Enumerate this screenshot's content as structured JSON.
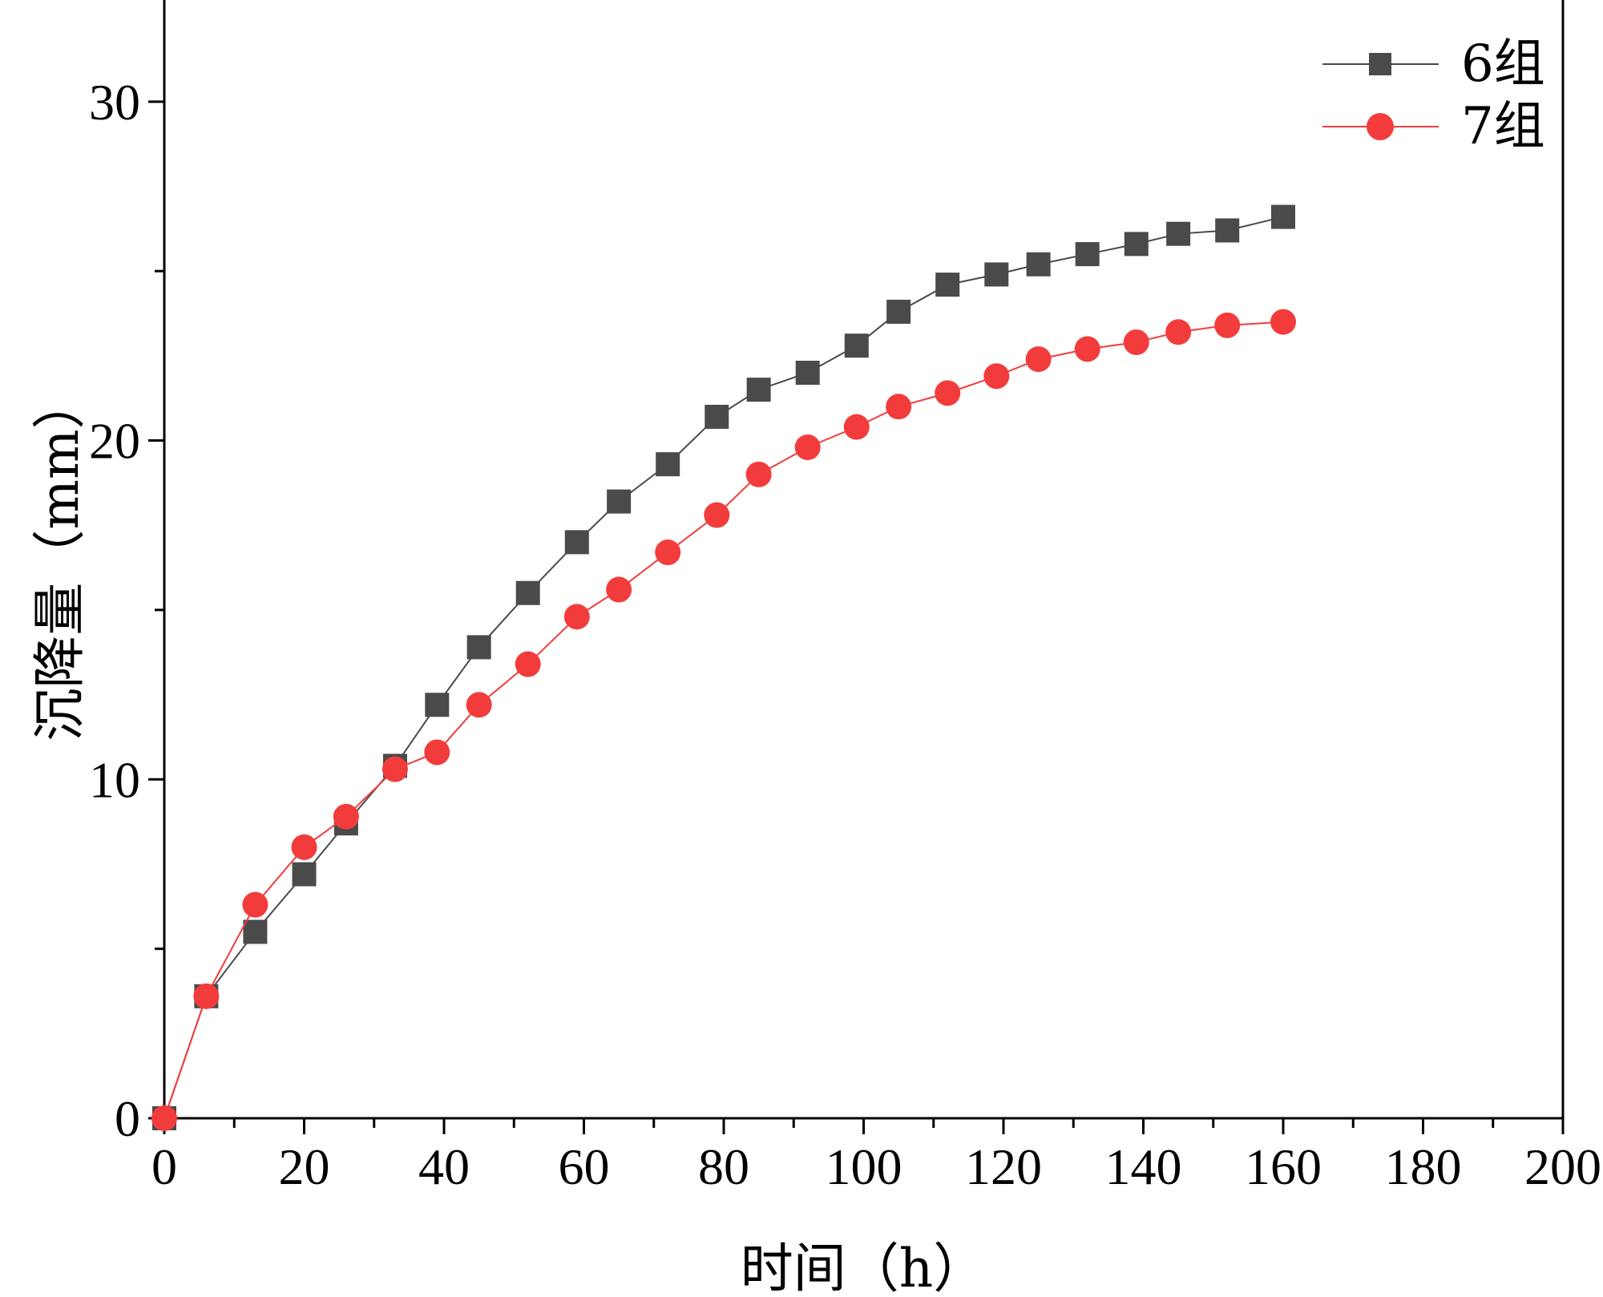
{
  "chart_data": {
    "type": "line",
    "title": "",
    "xlabel": "时间（h）",
    "ylabel": "沉降量（mm）",
    "xlim": [
      0,
      200
    ],
    "ylim": [
      0,
      33
    ],
    "xticks": [
      0,
      20,
      40,
      60,
      80,
      100,
      120,
      140,
      160,
      180,
      200
    ],
    "yticks": [
      0,
      10,
      20,
      30
    ],
    "grid": false,
    "legend_position": "top-right",
    "series": [
      {
        "name": "6组",
        "color": "#4a4a4a",
        "marker": "square",
        "x": [
          0,
          6,
          13,
          20,
          26,
          33,
          39,
          45,
          52,
          59,
          65,
          72,
          79,
          85,
          92,
          99,
          105,
          112,
          119,
          125,
          132,
          139,
          145,
          152,
          160
        ],
        "y": [
          0,
          3.6,
          5.5,
          7.2,
          8.7,
          10.4,
          12.2,
          13.9,
          15.5,
          17.0,
          18.2,
          19.3,
          20.7,
          21.5,
          22.0,
          22.8,
          23.8,
          24.6,
          24.9,
          25.2,
          25.5,
          25.8,
          26.1,
          26.2,
          26.6
        ]
      },
      {
        "name": "7组",
        "color": "#f23c3c",
        "marker": "circle",
        "x": [
          0,
          6,
          13,
          20,
          26,
          33,
          39,
          45,
          52,
          59,
          65,
          72,
          79,
          85,
          92,
          99,
          105,
          112,
          119,
          125,
          132,
          139,
          145,
          152,
          160
        ],
        "y": [
          0,
          3.6,
          6.3,
          8.0,
          8.9,
          10.3,
          10.8,
          12.2,
          13.4,
          14.8,
          15.6,
          16.7,
          17.8,
          19.0,
          19.8,
          20.4,
          21.0,
          21.4,
          21.9,
          22.4,
          22.7,
          22.9,
          23.2,
          23.4,
          23.5
        ]
      }
    ]
  }
}
